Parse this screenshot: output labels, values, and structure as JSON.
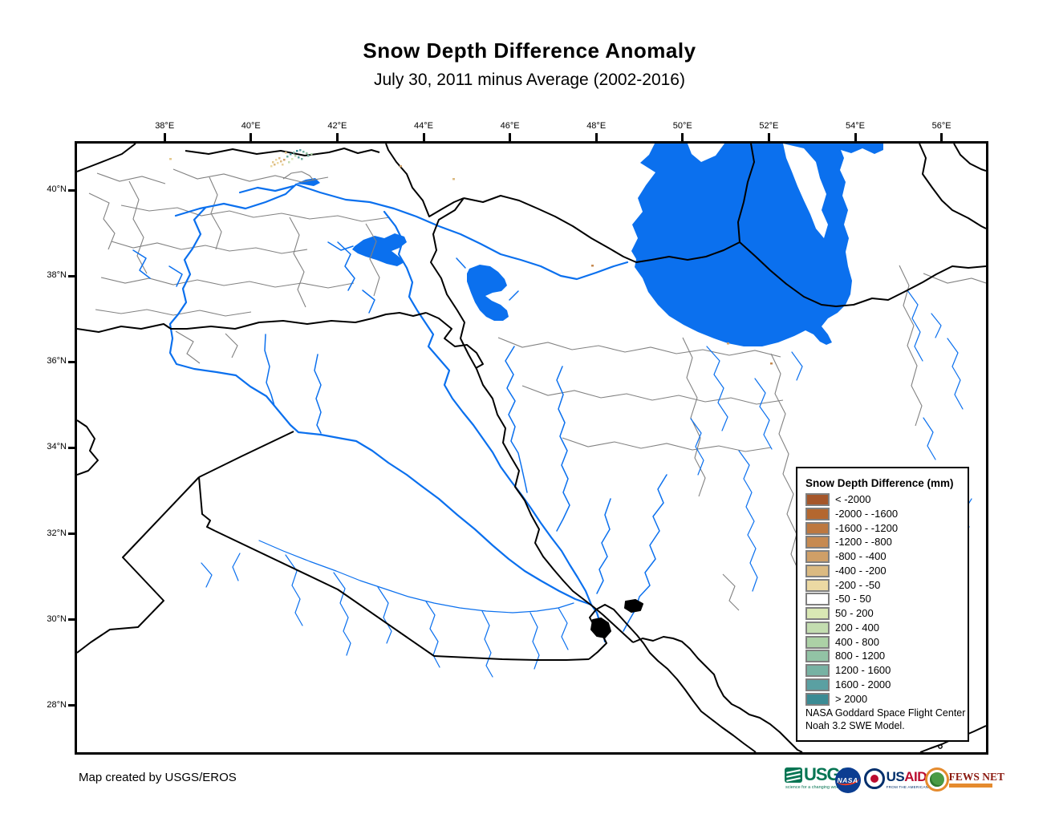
{
  "title": "Snow Depth Difference Anomaly",
  "subtitle": "July 30, 2011 minus Average (2002-2016)",
  "credit": "Map created by USGS/EROS",
  "map": {
    "lon_ticks": [
      "38°E",
      "40°E",
      "42°E",
      "44°E",
      "46°E",
      "48°E",
      "50°E",
      "52°E",
      "54°E",
      "56°E"
    ],
    "lat_ticks": [
      "40°N",
      "38°N",
      "36°N",
      "34°N",
      "32°N",
      "30°N",
      "28°N"
    ]
  },
  "legend": {
    "title": "Snow Depth Difference (mm)",
    "items": [
      {
        "label": "< -2000",
        "color": "#a5562a"
      },
      {
        "label": "-2000 - -1600",
        "color": "#b4672f"
      },
      {
        "label": "-1600 - -1200",
        "color": "#bd7840"
      },
      {
        "label": "-1200 - -800",
        "color": "#c68a51"
      },
      {
        "label": "-800 - -400",
        "color": "#cf9f67"
      },
      {
        "label": "-400 - -200",
        "color": "#dbba81"
      },
      {
        "label": "-200 - -50",
        "color": "#ecd9a3"
      },
      {
        "label": "-50 - 50",
        "color": "#ffffff"
      },
      {
        "label": "50 - 200",
        "color": "#d9e8b4"
      },
      {
        "label": "200 - 400",
        "color": "#c3ddb0"
      },
      {
        "label": "400 - 800",
        "color": "#acd1a6"
      },
      {
        "label": "800 - 1200",
        "color": "#92c3a5"
      },
      {
        "label": "1200 - 1600",
        "color": "#77b2a3"
      },
      {
        "label": "1600 - 2000",
        "color": "#5aa0a2"
      },
      {
        "label": "> 2000",
        "color": "#3b8b94"
      }
    ],
    "note_line1": "NASA Goddard Space Flight Center",
    "note_line2": "Noah 3.2 SWE Model."
  },
  "logos": {
    "usgs": {
      "name": "USGS",
      "tagline": "science for a changing world"
    },
    "nasa": {
      "name": "NASA"
    },
    "usaid": {
      "text_us": "US",
      "text_aid": "AID",
      "tagline": "FROM THE AMERICAN PEOPLE"
    },
    "fewsnet": {
      "name": "FEWS NET"
    }
  },
  "colors": {
    "water": "#0b70ee",
    "border": "#000000",
    "admin": "#818181",
    "accent_orange": "#e58b2e",
    "usgs_green": "#067553",
    "nasa_blue": "#0b3d91",
    "usaid_blue": "#002f6c",
    "usaid_red": "#ba0c2f",
    "fews_red": "#8b1a10"
  }
}
